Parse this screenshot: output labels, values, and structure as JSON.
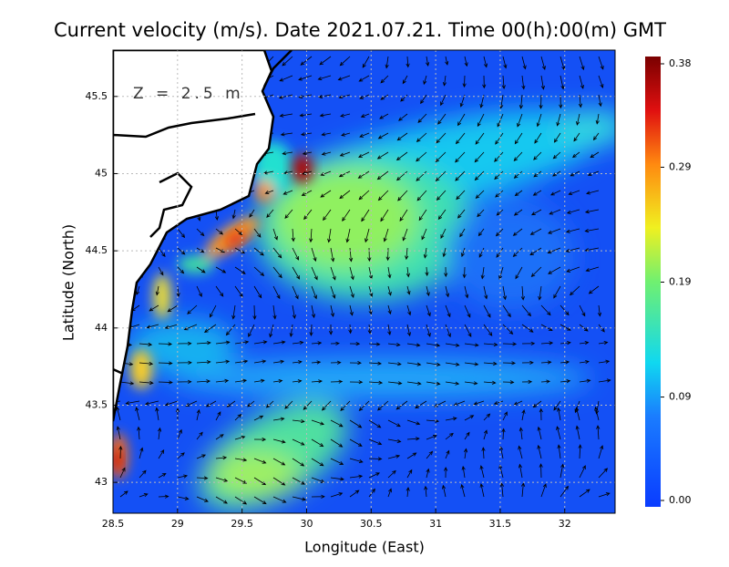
{
  "chart_data": {
    "type": "map",
    "title": "Current velocity (m/s). Date 2021.07.21. Time 00(h):00(m) GMT",
    "annotation": "Z = 2.5 m",
    "x_label": "Longitude (East)",
    "y_label": "Latitude (North)",
    "xlim": [
      28.5,
      32.39
    ],
    "ylim": [
      42.8,
      45.8
    ],
    "xticks": [
      28.5,
      29,
      29.5,
      30,
      30.5,
      31,
      31.5,
      32
    ],
    "yticks": [
      43,
      43.5,
      44,
      44.5,
      45,
      45.5
    ],
    "grid": true,
    "colorbar_lim": [
      0,
      0.38
    ],
    "colorbar_ticks": [
      {
        "value": 0,
        "label": "0.00"
      },
      0.09,
      0.19,
      0.29,
      0.38
    ]
  }
}
